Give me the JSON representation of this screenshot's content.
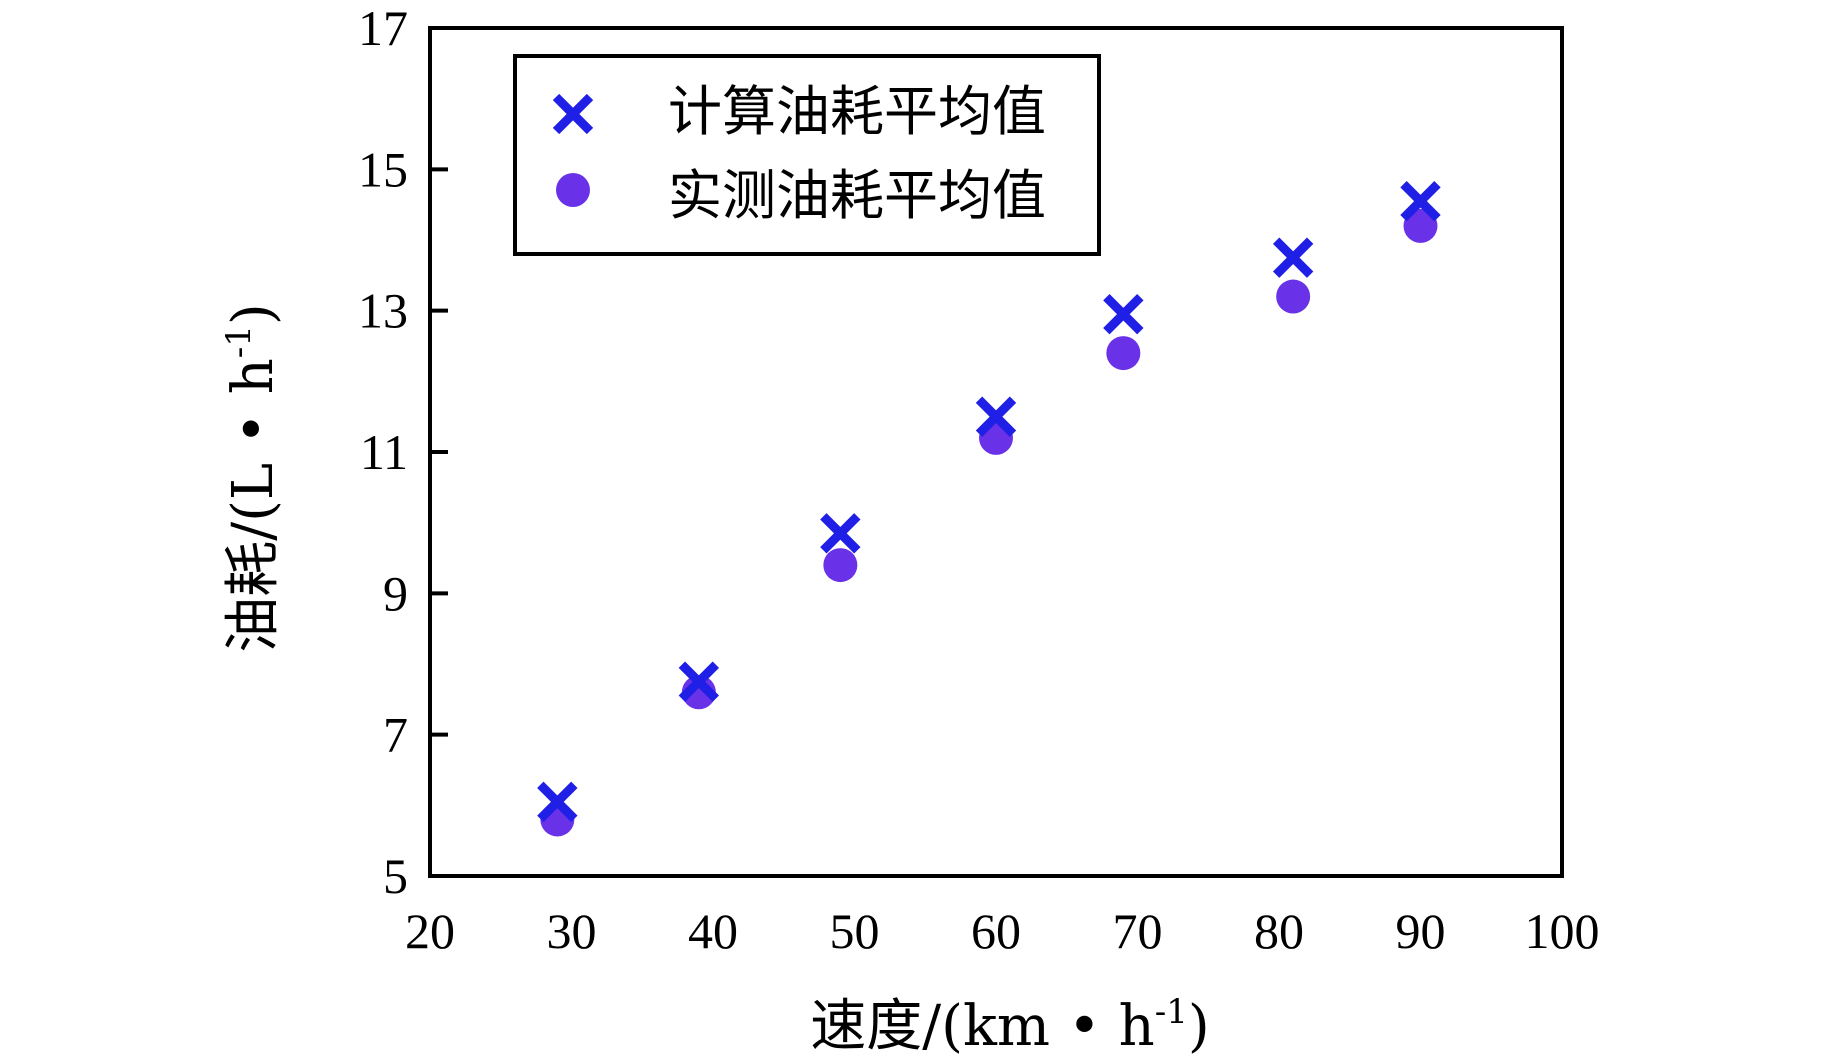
{
  "chart_data": {
    "type": "scatter",
    "title": "",
    "xlabel": "速度/(km • h-1)",
    "ylabel": "油耗/(L • h-1)",
    "xlabel_parts": {
      "main": "速度/(km • h",
      "sup": "-1",
      "close": ")"
    },
    "ylabel_parts": {
      "main": "油耗/(L • h",
      "sup": "-1",
      "close": ")"
    },
    "xlim": [
      20,
      100
    ],
    "ylim": [
      5,
      17
    ],
    "xticks": [
      20,
      30,
      40,
      50,
      60,
      70,
      80,
      90,
      100
    ],
    "yticks": [
      5,
      7,
      9,
      11,
      13,
      15,
      17
    ],
    "grid": false,
    "legend_position": "top-left",
    "series": [
      {
        "name": "计算油耗平均值",
        "marker": "x",
        "color": "#1f1fe6",
        "x": [
          29,
          39,
          49,
          60,
          69,
          81,
          90
        ],
        "y": [
          6.05,
          7.75,
          9.85,
          11.5,
          12.95,
          13.75,
          14.55
        ]
      },
      {
        "name": "实测油耗平均值",
        "marker": "circle",
        "color": "#6a32e8",
        "x": [
          29,
          39,
          49,
          60,
          69,
          81,
          90
        ],
        "y": [
          5.8,
          7.6,
          9.4,
          11.2,
          12.4,
          13.2,
          14.2
        ]
      }
    ]
  }
}
